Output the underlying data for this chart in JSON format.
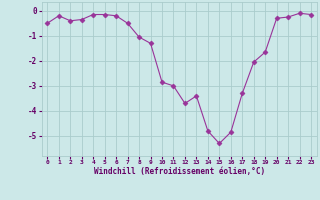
{
  "x": [
    0,
    1,
    2,
    3,
    4,
    5,
    6,
    7,
    8,
    9,
    10,
    11,
    12,
    13,
    14,
    15,
    16,
    17,
    18,
    19,
    20,
    21,
    22,
    23
  ],
  "y": [
    -0.5,
    -0.2,
    -0.4,
    -0.35,
    -0.15,
    -0.15,
    -0.2,
    -0.5,
    -1.05,
    -1.3,
    -2.85,
    -3.0,
    -3.7,
    -3.4,
    -4.8,
    -5.3,
    -4.85,
    -3.3,
    -2.05,
    -1.65,
    -0.3,
    -0.25,
    -0.1,
    -0.15
  ],
  "line_color": "#993399",
  "marker": "D",
  "marker_size": 2.5,
  "bg_color": "#cce8e8",
  "grid_color": "#aacccc",
  "xlabel": "Windchill (Refroidissement éolien,°C)",
  "xlabel_color": "#660066",
  "tick_color": "#660066",
  "ylim": [
    -5.8,
    0.35
  ],
  "xlim": [
    -0.5,
    23.5
  ],
  "yticks": [
    0,
    -1,
    -2,
    -3,
    -4,
    -5
  ],
  "ytick_labels": [
    "0",
    "-1",
    "-2",
    "-3",
    "-4",
    "-5"
  ],
  "xticks": [
    0,
    1,
    2,
    3,
    4,
    5,
    6,
    7,
    8,
    9,
    10,
    11,
    12,
    13,
    14,
    15,
    16,
    17,
    18,
    19,
    20,
    21,
    22,
    23
  ]
}
